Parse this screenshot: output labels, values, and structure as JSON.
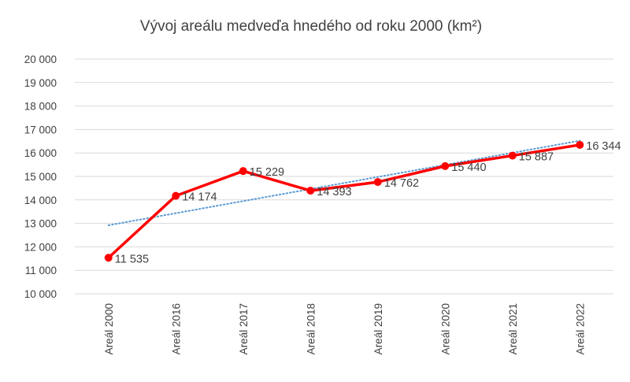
{
  "chart_data": {
    "type": "line",
    "title": "Vývoj areálu medveďa hnedého od roku 2000 (km²)",
    "xlabel": "",
    "ylabel": "",
    "categories": [
      "Areál 2000",
      "Areál 2016",
      "Areál 2017",
      "Areál 2018",
      "Areál 2019",
      "Areál 2020",
      "Areál 2021",
      "Areál 2022"
    ],
    "series": [
      {
        "values": [
          11535,
          14174,
          15229,
          14393,
          14762,
          15440,
          15887,
          16344
        ],
        "labels": [
          "11 535",
          "14 174",
          "15 229",
          "14 393",
          "14 762",
          "15 440",
          "15 887",
          "16 344"
        ],
        "color": "#ff0000",
        "marker": "circle"
      }
    ],
    "trendline": {
      "type": "linear",
      "color": "#5b9bd5",
      "style": "dotted"
    },
    "ylim": [
      10000,
      20000
    ],
    "yticks": [
      10000,
      11000,
      12000,
      13000,
      14000,
      15000,
      16000,
      17000,
      18000,
      19000,
      20000
    ],
    "ytick_labels": [
      "10 000",
      "11 000",
      "12 000",
      "13 000",
      "14 000",
      "15 000",
      "16 000",
      "17 000",
      "18 000",
      "19 000",
      "20 000"
    ],
    "grid": true,
    "legend": "none"
  }
}
